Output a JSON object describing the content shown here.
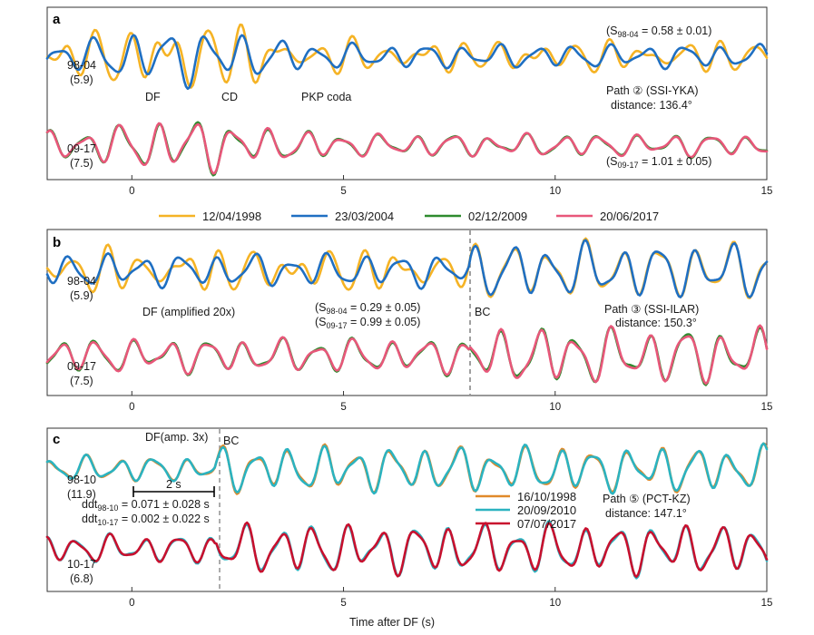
{
  "chart_data": [
    {
      "panel": "a",
      "type": "line",
      "xlim": [
        -2,
        15
      ],
      "xticks": [
        0,
        5,
        10,
        15
      ],
      "path_label": "Path ② (SSI-YKA)",
      "distance_label": "distance: 136.4°",
      "annotations": [
        "DF",
        "CD",
        "PKP coda"
      ],
      "traces": [
        {
          "pair": "98-04",
          "mag": "(5.9)",
          "sim_main": "(S",
          "sim_sub": "98-04",
          "sim_tail": " = 0.58 ± 0.01)",
          "series": [
            "12/04/1998",
            "23/03/2004"
          ]
        },
        {
          "pair": "09-17",
          "mag": "(7.5)",
          "sim_main": "(S",
          "sim_sub": "09-17",
          "sim_tail": " = 1.01 ± 0.05)",
          "series": [
            "02/12/2009",
            "20/06/2017"
          ]
        }
      ]
    },
    {
      "panel": "b",
      "type": "line",
      "xlim": [
        -2,
        15
      ],
      "xticks": [
        0,
        5,
        10,
        15
      ],
      "path_label": "Path ③ (SSI-ILAR)",
      "distance_label": "distance: 150.3°",
      "annotations": [
        "DF  (amplified 20x)",
        "BC"
      ],
      "bc_time": 8,
      "traces": [
        {
          "pair": "98-04",
          "mag": "(5.9)",
          "sim_main": "(S",
          "sim_sub": "98-04",
          "sim_tail": " = 0.29 ± 0.05)",
          "series": [
            "12/04/1998",
            "23/03/2004"
          ]
        },
        {
          "pair": "09-17",
          "mag": "(7.5)",
          "sim_main": "(S",
          "sim_sub": "09-17",
          "sim_tail": " = 0.99 ± 0.05)",
          "series": [
            "02/12/2009",
            "20/06/2017"
          ]
        }
      ]
    },
    {
      "panel": "c",
      "type": "line",
      "xlim": [
        -2,
        15
      ],
      "xticks": [
        0,
        5,
        10,
        15
      ],
      "xlabel": "Time after DF (s)",
      "path_label": "Path ⑤ (PCT-KZ)",
      "distance_label": "distance: 147.1°",
      "annotations": [
        "DF(amp. 3x)",
        "BC",
        "2 s"
      ],
      "bc_time": 2.05,
      "ddt": [
        {
          "main": "ddt",
          "sub": "98-10",
          "tail": " = 0.071 ± 0.028 s"
        },
        {
          "main": "ddt",
          "sub": "10-17",
          "tail": " = 0.002 ± 0.022 s"
        }
      ],
      "traces": [
        {
          "pair": "98-10",
          "mag": "(11.9)",
          "series": [
            "16/10/1998",
            "20/09/2010"
          ]
        },
        {
          "pair": "10-17",
          "mag": "(6.8)",
          "series": [
            "20/09/2010",
            "07/07/2017"
          ]
        }
      ]
    }
  ],
  "legend_top": [
    {
      "label": "12/04/1998",
      "color": "#f5b325"
    },
    {
      "label": "23/03/2004",
      "color": "#1f6fc2"
    },
    {
      "label": "02/12/2009",
      "color": "#2e8b2e"
    },
    {
      "label": "20/06/2017",
      "color": "#e8577a"
    }
  ],
  "legend_c": [
    {
      "label": "16/10/1998",
      "color": "#e08a2a"
    },
    {
      "label": "20/09/2010",
      "color": "#2bb3c0"
    },
    {
      "label": "07/07/2017",
      "color": "#c8102e"
    }
  ]
}
